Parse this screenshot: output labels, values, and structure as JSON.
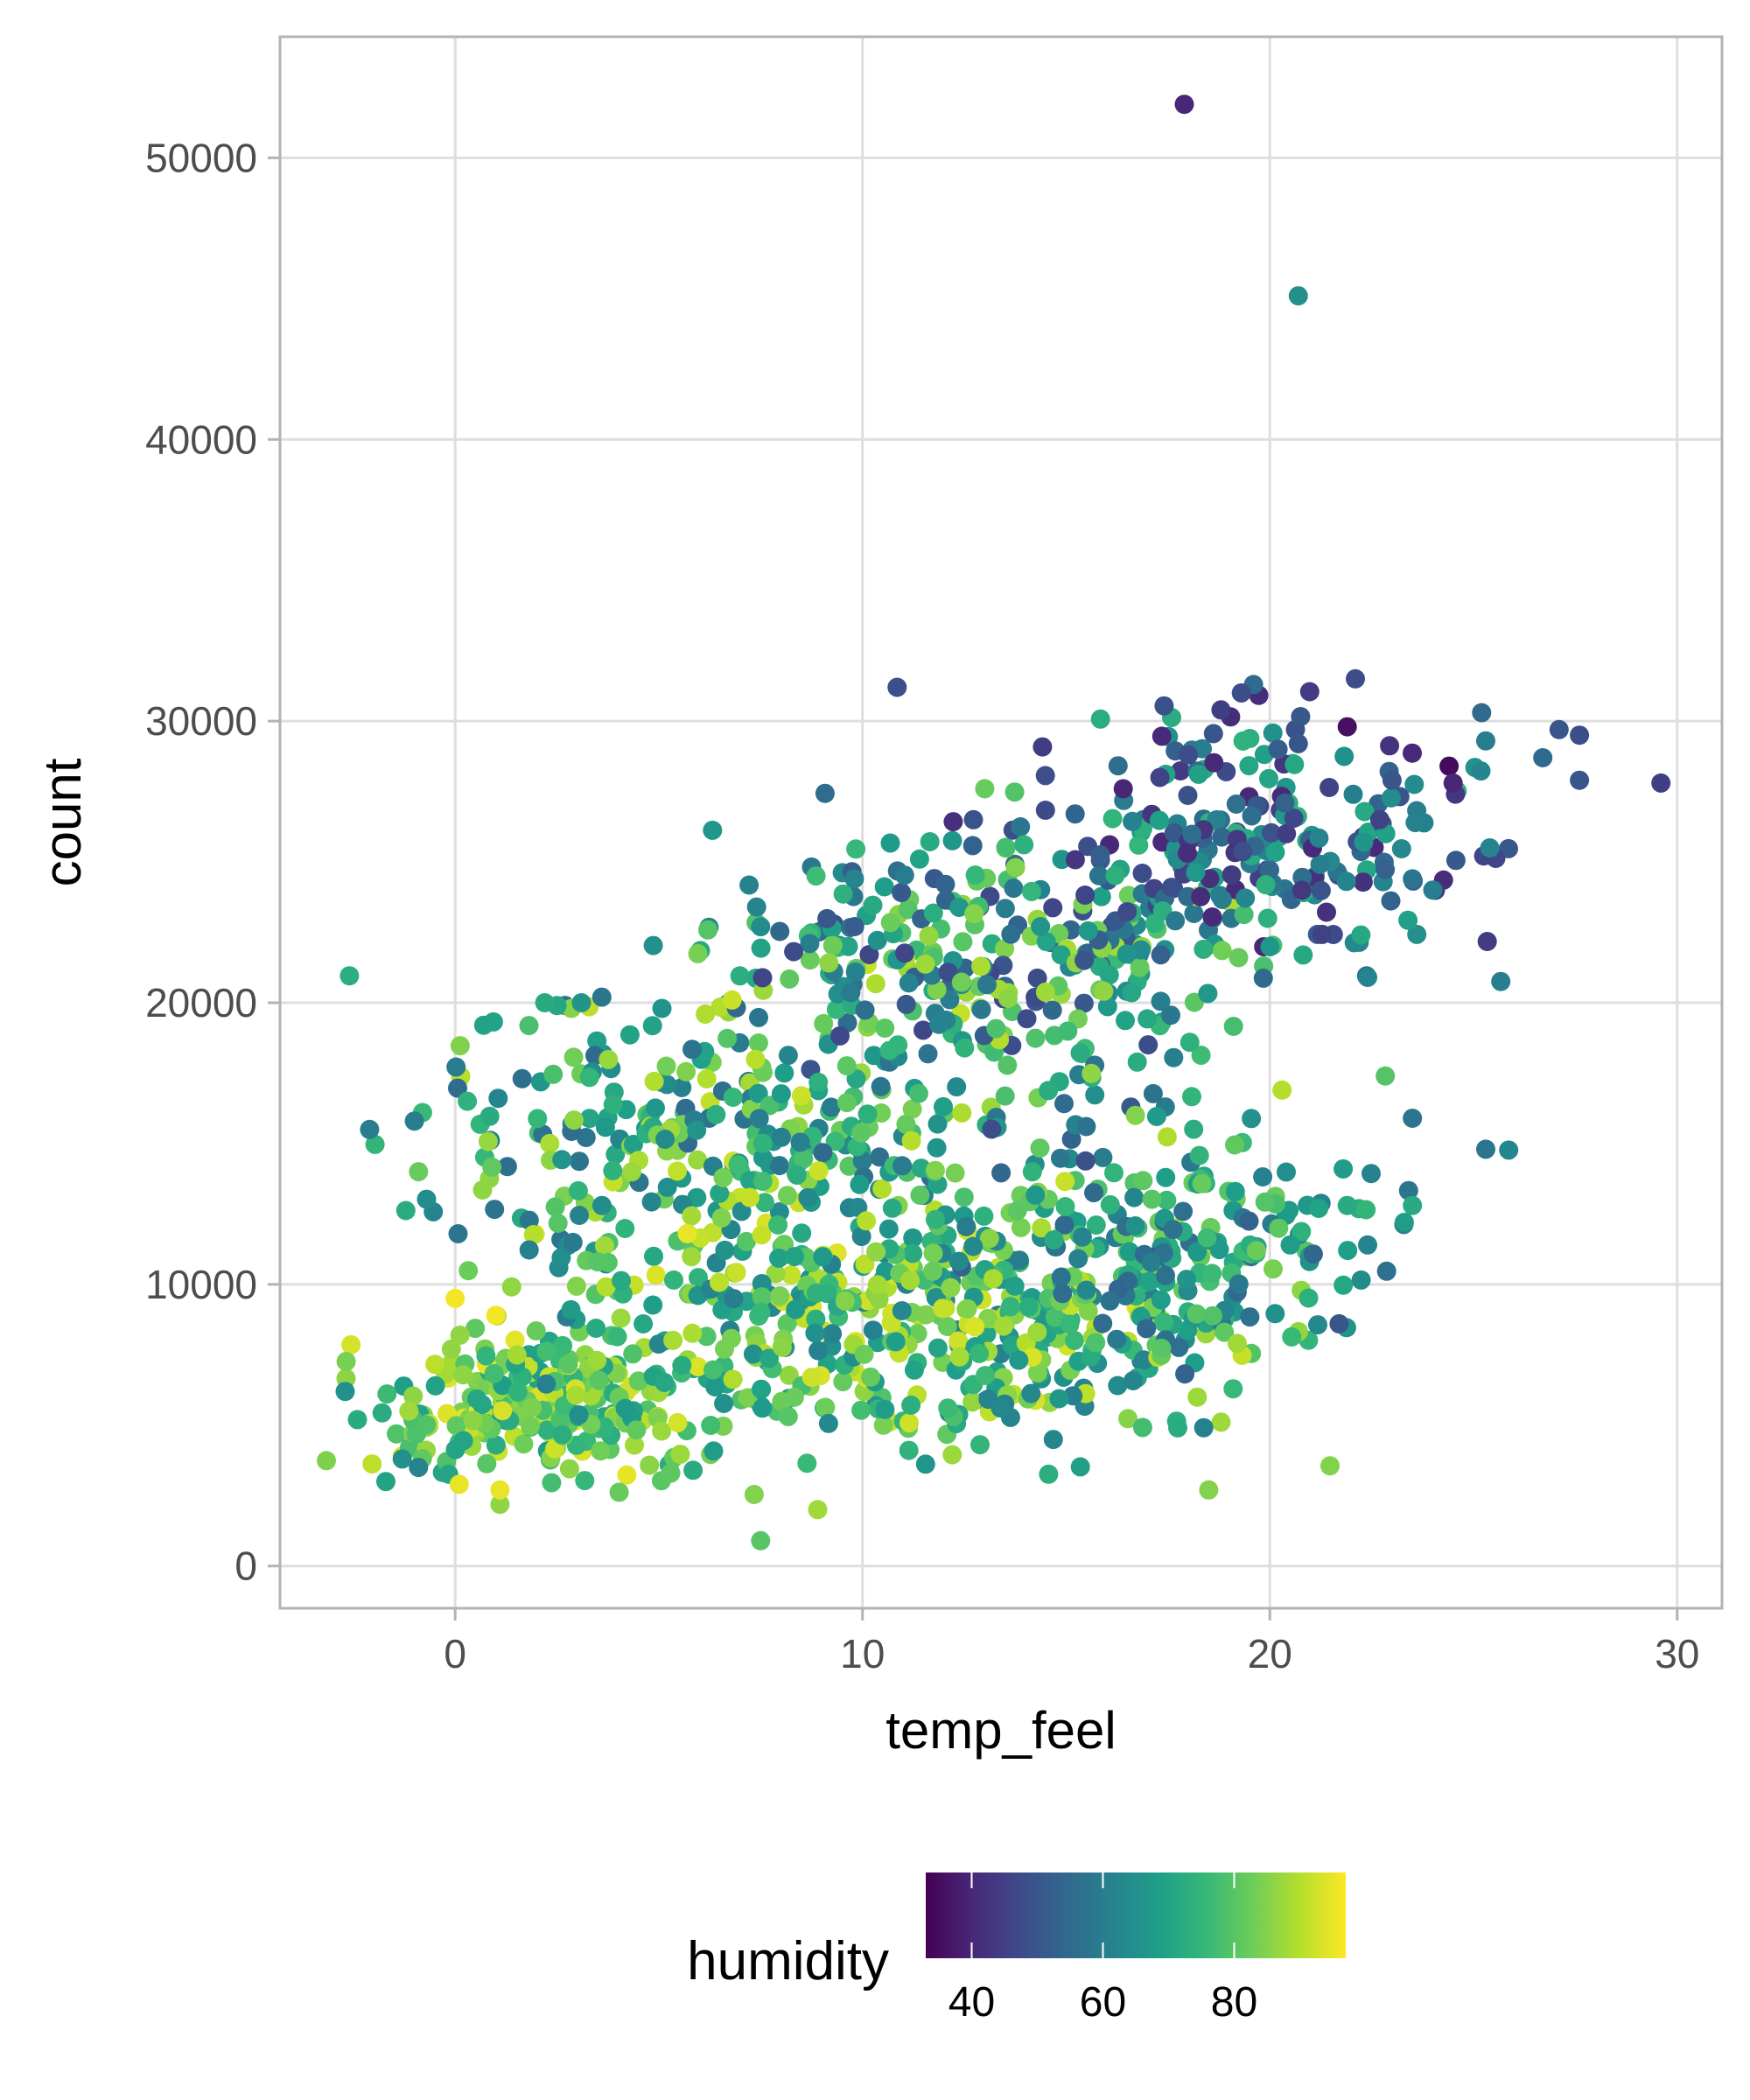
{
  "chart_data": {
    "type": "scatter",
    "title": "",
    "xlabel": "temp_feel",
    "ylabel": "count",
    "xlim": [
      -4.3,
      31.1
    ],
    "ylim": [
      -1500,
      54300
    ],
    "x_ticks": [
      0,
      10,
      20,
      30
    ],
    "y_ticks": [
      0,
      10000,
      20000,
      30000,
      40000,
      50000
    ],
    "x_tick_labels": [
      "0",
      "10",
      "20",
      "30"
    ],
    "y_tick_labels": [
      "0",
      "10000",
      "20000",
      "30000",
      "40000",
      "50000"
    ],
    "grid": true,
    "legend": {
      "title": "humidity",
      "placement": "bottom",
      "type": "colorbar",
      "range": [
        33,
        97
      ],
      "ticks": [
        40,
        60,
        80
      ],
      "tick_labels": [
        "40",
        "60",
        "80"
      ],
      "palette": [
        "#440154",
        "#482878",
        "#3E4A89",
        "#31688E",
        "#26828E",
        "#1F9E89",
        "#35B779",
        "#6DCD59",
        "#B4DE2C",
        "#FDE725"
      ]
    },
    "colors": {
      "grid": "#dedede",
      "panel_border": "#b3b3b3",
      "tick_mark": "#b3b3b3"
    },
    "points": [
      {
        "x": 17.9,
        "y": 51900,
        "h": 40
      },
      {
        "x": 20.7,
        "y": 45100,
        "h": 65
      },
      {
        "x": 29.6,
        "y": 27800,
        "h": 45
      },
      {
        "x": 27.6,
        "y": 27900,
        "h": 50
      },
      {
        "x": 27.6,
        "y": 29500,
        "h": 48
      },
      {
        "x": 27.1,
        "y": 29700,
        "h": 50
      },
      {
        "x": 26.7,
        "y": 28700,
        "h": 55
      },
      {
        "x": 25.3,
        "y": 14800,
        "h": 58
      },
      {
        "x": 25.4,
        "y": 25500,
        "h": 62
      },
      {
        "x": 25.2,
        "y": 30300,
        "h": 55
      },
      {
        "x": 25.3,
        "y": 29300,
        "h": 60
      },
      {
        "x": 24.4,
        "y": 28400,
        "h": 35
      },
      {
        "x": 24.5,
        "y": 27800,
        "h": 40
      },
      {
        "x": 21.9,
        "y": 29800,
        "h": 36
      },
      {
        "x": 22.1,
        "y": 31500,
        "h": 48
      },
      {
        "x": 21.7,
        "y": 8600,
        "h": 50
      },
      {
        "x": 19.6,
        "y": 31300,
        "h": 55
      },
      {
        "x": 19.3,
        "y": 31000,
        "h": 48
      },
      {
        "x": 18.8,
        "y": 30400,
        "h": 45
      },
      {
        "x": 16.4,
        "y": 27600,
        "h": 40
      },
      {
        "x": 13.0,
        "y": 27600,
        "h": 82
      },
      {
        "x": 16.7,
        "y": 16000,
        "h": 85
      },
      {
        "x": 18.5,
        "y": 2700,
        "h": 85
      },
      {
        "x": 19.2,
        "y": 7900,
        "h": 88
      },
      {
        "x": 0.0,
        "y": 9500,
        "h": 96
      },
      {
        "x": 1.0,
        "y": 8900,
        "h": 96
      },
      {
        "x": 5.7,
        "y": 11800,
        "h": 95
      },
      {
        "x": 0.1,
        "y": 2900,
        "h": 95
      },
      {
        "x": 1.1,
        "y": 2700,
        "h": 95
      },
      {
        "x": -2.1,
        "y": 15500,
        "h": 60
      },
      {
        "x": -2.7,
        "y": 6200,
        "h": 65
      },
      {
        "x": -2.4,
        "y": 5200,
        "h": 72
      },
      {
        "x": -1.7,
        "y": 3000,
        "h": 70
      },
      {
        "x": -1.3,
        "y": 3800,
        "h": 65
      },
      {
        "x": -0.9,
        "y": 3500,
        "h": 62
      },
      {
        "x": 6.8,
        "y": 20100,
        "h": 92
      },
      {
        "x": 8.5,
        "y": 16700,
        "h": 92
      },
      {
        "x": 11.2,
        "y": 15100,
        "h": 90
      },
      {
        "x": 8.9,
        "y": 2000,
        "h": 88
      },
      {
        "x": 7.5,
        "y": 900,
        "h": 80
      },
      {
        "x": 18.0,
        "y": 28800,
        "h": 48
      },
      {
        "x": 17.3,
        "y": 28000,
        "h": 46
      },
      {
        "x": 20.2,
        "y": 29000,
        "h": 52
      },
      {
        "x": 20.7,
        "y": 29200,
        "h": 50
      },
      {
        "x": 23.0,
        "y": 27900,
        "h": 50
      },
      {
        "x": 22.7,
        "y": 26500,
        "h": 46
      },
      {
        "x": 22.4,
        "y": 20900,
        "h": 62
      },
      {
        "x": 23.5,
        "y": 24400,
        "h": 58
      },
      {
        "x": 24.0,
        "y": 24000,
        "h": 60
      },
      {
        "x": 23.5,
        "y": 15900,
        "h": 58
      },
      {
        "x": 23.5,
        "y": 12800,
        "h": 72
      },
      {
        "x": 23.3,
        "y": 12200,
        "h": 68
      },
      {
        "x": 22.4,
        "y": 11400,
        "h": 62
      },
      {
        "x": 21.9,
        "y": 12800,
        "h": 72
      },
      {
        "x": 21.8,
        "y": 14100,
        "h": 68
      },
      {
        "x": 21.2,
        "y": 12700,
        "h": 70
      },
      {
        "x": 20.3,
        "y": 16900,
        "h": 90
      },
      {
        "x": 20.5,
        "y": 11400,
        "h": 68
      },
      {
        "x": 3.5,
        "y": 10800,
        "h": 80
      },
      {
        "x": 7.4,
        "y": 23400,
        "h": 62
      },
      {
        "x": 7.5,
        "y": 22700,
        "h": 64
      },
      {
        "x": 9.8,
        "y": 24400,
        "h": 62
      },
      {
        "x": 11.4,
        "y": 25100,
        "h": 70
      },
      {
        "x": 0.3,
        "y": 16500,
        "h": 74
      },
      {
        "x": -0.8,
        "y": 16100,
        "h": 76
      },
      {
        "x": -0.9,
        "y": 14000,
        "h": 82
      },
      {
        "x": -1.0,
        "y": 15800,
        "h": 60
      },
      {
        "x": 0.7,
        "y": 19200,
        "h": 70
      },
      {
        "x": 2.2,
        "y": 20000,
        "h": 72
      },
      {
        "x": 3.1,
        "y": 20000,
        "h": 66
      },
      {
        "x": 3.6,
        "y": 20200,
        "h": 58
      }
    ],
    "scatter_clusters": [
      {
        "cx": 2.5,
        "cy": 5800,
        "sx": 2.1,
        "sy": 1200,
        "n": 260,
        "hmin": 68,
        "hmax": 95,
        "seed": 11
      },
      {
        "cx": 11.5,
        "cy": 8400,
        "sx": 3.9,
        "sy": 2300,
        "n": 430,
        "hmin": 60,
        "hmax": 94,
        "seed": 23
      },
      {
        "cx": 18.0,
        "cy": 11200,
        "sx": 2.6,
        "sy": 2100,
        "n": 170,
        "hmin": 52,
        "hmax": 84,
        "seed": 37
      },
      {
        "cx": 6.2,
        "cy": 15600,
        "sx": 3.5,
        "sy": 2500,
        "n": 240,
        "hmin": 55,
        "hmax": 92,
        "seed": 41
      },
      {
        "cx": 13.5,
        "cy": 21600,
        "sx": 3.4,
        "sy": 2400,
        "n": 280,
        "hmin": 46,
        "hmax": 90,
        "seed": 53
      },
      {
        "cx": 19.5,
        "cy": 25500,
        "sx": 2.5,
        "sy": 2000,
        "n": 220,
        "hmin": 40,
        "hmax": 75,
        "seed": 67
      },
      {
        "cx": 9.0,
        "cy": 12500,
        "sx": 4.0,
        "sy": 2800,
        "n": 120,
        "hmin": 58,
        "hmax": 92,
        "seed": 79
      }
    ]
  }
}
